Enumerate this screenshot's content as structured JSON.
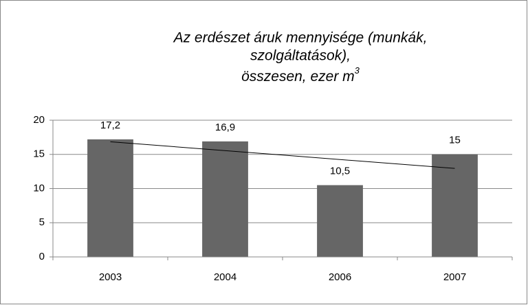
{
  "chart_data": {
    "type": "bar",
    "title": [
      "Az erdészet áruk mennyisége (munkák,",
      "szolgáltatások),",
      "összesen, ezer m"
    ],
    "title_superscript": "3",
    "categories": [
      "2003",
      "2004",
      "2006",
      "2007"
    ],
    "values": [
      17.2,
      16.9,
      10.5,
      15
    ],
    "value_labels": [
      "17,2",
      "16,9",
      "10,5",
      "15"
    ],
    "color": "#666666",
    "trend": [
      16.85,
      12.95
    ],
    "trend_color": "#000000",
    "ylim": [
      0,
      20
    ],
    "yticks": [
      0,
      5,
      10,
      15,
      20
    ],
    "grid": true
  }
}
